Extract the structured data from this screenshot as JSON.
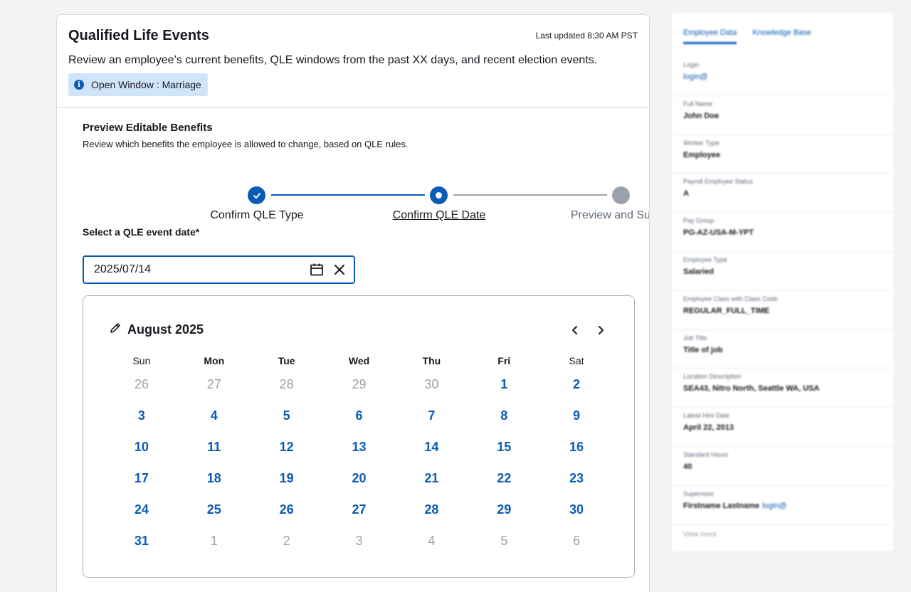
{
  "header": {
    "title": "Qualified Life Events",
    "last_updated": "Last updated 8:30 AM PST",
    "description": "Review an employee’s current benefits, QLE windows from the past XX days, and recent election events.",
    "open_window": "Open Window : Marriage"
  },
  "section": {
    "title": "Preview Editable Benefits",
    "description": "Review which benefits the employee is allowed to change, based on QLE rules."
  },
  "stepper": {
    "steps": [
      {
        "label": "Confirm QLE Type",
        "state": "complete"
      },
      {
        "label": "Confirm QLE Date",
        "state": "current"
      },
      {
        "label": "Preview and Submit",
        "state": "upcoming"
      }
    ]
  },
  "date_field": {
    "label": "Select a QLE event date*",
    "value": "2025/07/14"
  },
  "calendar": {
    "month_label": "August 2025",
    "weekdays": [
      "Sun",
      "Mon",
      "Tue",
      "Wed",
      "Thu",
      "Fri",
      "Sat"
    ],
    "weeks": [
      [
        [
          "26",
          0
        ],
        [
          "27",
          0
        ],
        [
          "28",
          0
        ],
        [
          "29",
          0
        ],
        [
          "30",
          0
        ],
        [
          "1",
          1
        ],
        [
          "2",
          1
        ]
      ],
      [
        [
          "3",
          1
        ],
        [
          "4",
          1
        ],
        [
          "5",
          1
        ],
        [
          "6",
          1
        ],
        [
          "7",
          1
        ],
        [
          "8",
          1
        ],
        [
          "9",
          1
        ]
      ],
      [
        [
          "10",
          1
        ],
        [
          "11",
          1
        ],
        [
          "12",
          1
        ],
        [
          "13",
          1
        ],
        [
          "14",
          1
        ],
        [
          "15",
          1
        ],
        [
          "16",
          1
        ]
      ],
      [
        [
          "17",
          1
        ],
        [
          "18",
          1
        ],
        [
          "19",
          1
        ],
        [
          "20",
          1
        ],
        [
          "21",
          1
        ],
        [
          "22",
          1
        ],
        [
          "23",
          1
        ]
      ],
      [
        [
          "24",
          1
        ],
        [
          "25",
          1
        ],
        [
          "26",
          1
        ],
        [
          "27",
          1
        ],
        [
          "28",
          1
        ],
        [
          "29",
          1
        ],
        [
          "30",
          1
        ]
      ],
      [
        [
          "31",
          1
        ],
        [
          "1",
          0
        ],
        [
          "2",
          0
        ],
        [
          "3",
          0
        ],
        [
          "4",
          0
        ],
        [
          "5",
          0
        ],
        [
          "6",
          0
        ]
      ]
    ]
  },
  "side_panel": {
    "tabs": [
      "Employee Data",
      "Knowledge Base"
    ],
    "fields": [
      {
        "label": "Login",
        "value": "",
        "link": "login@"
      },
      {
        "label": "Full Name",
        "value": "John Doe",
        "link": ""
      },
      {
        "label": "Worker Type",
        "value": "Employee",
        "link": ""
      },
      {
        "label": "Payroll Employee Status",
        "value": "A",
        "link": ""
      },
      {
        "label": "Pay Group",
        "value": "PG-AZ-USA-M-YPT",
        "link": ""
      },
      {
        "label": "Employee Type",
        "value": "Salaried",
        "link": ""
      },
      {
        "label": "Employee Class with Class Code",
        "value": "REGULAR_FULL_TIME",
        "link": ""
      },
      {
        "label": "Job Title",
        "value": "Title of job",
        "link": ""
      },
      {
        "label": "Location Description",
        "value": "SEA43, Nitro North, Seattle WA, USA",
        "link": ""
      },
      {
        "label": "Latest Hire Date",
        "value": "April 22, 2013",
        "link": ""
      },
      {
        "label": "Standard Hours",
        "value": "40",
        "link": ""
      },
      {
        "label": "Supervisor",
        "value": "Firstname Lastname",
        "link": "login@"
      }
    ],
    "view_more": "View more"
  },
  "colors": {
    "accent": "#0a5bb5",
    "muted": "#9aa3ab",
    "info_bg": "#d1e5fa"
  }
}
